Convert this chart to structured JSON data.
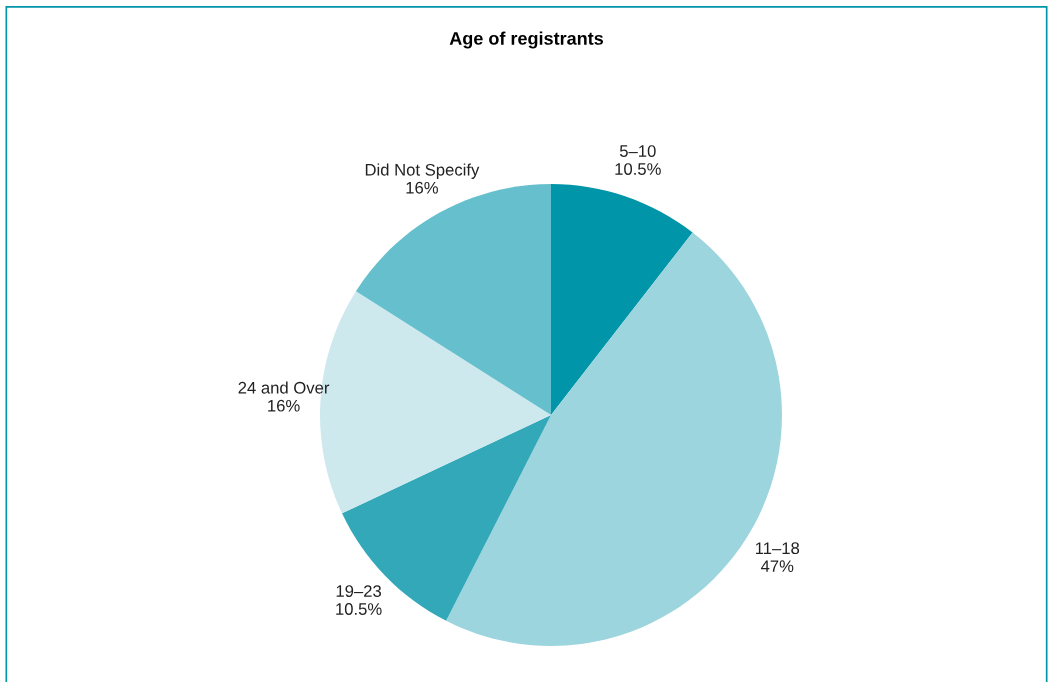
{
  "chart_data": {
    "type": "pie",
    "title": "Age of registrants",
    "categories": [
      "5–10",
      "11–18",
      "19–23",
      "24 and Over",
      "Did Not Specify"
    ],
    "values": [
      10.5,
      47,
      10.5,
      16,
      16
    ],
    "value_labels": [
      "10.5%",
      "47%",
      "10.5%",
      "16%",
      "16%"
    ],
    "colors": [
      "#0095a8",
      "#9cd5dd",
      "#33a8b9",
      "#cde9ee",
      "#66bfcc"
    ],
    "legend": false
  }
}
